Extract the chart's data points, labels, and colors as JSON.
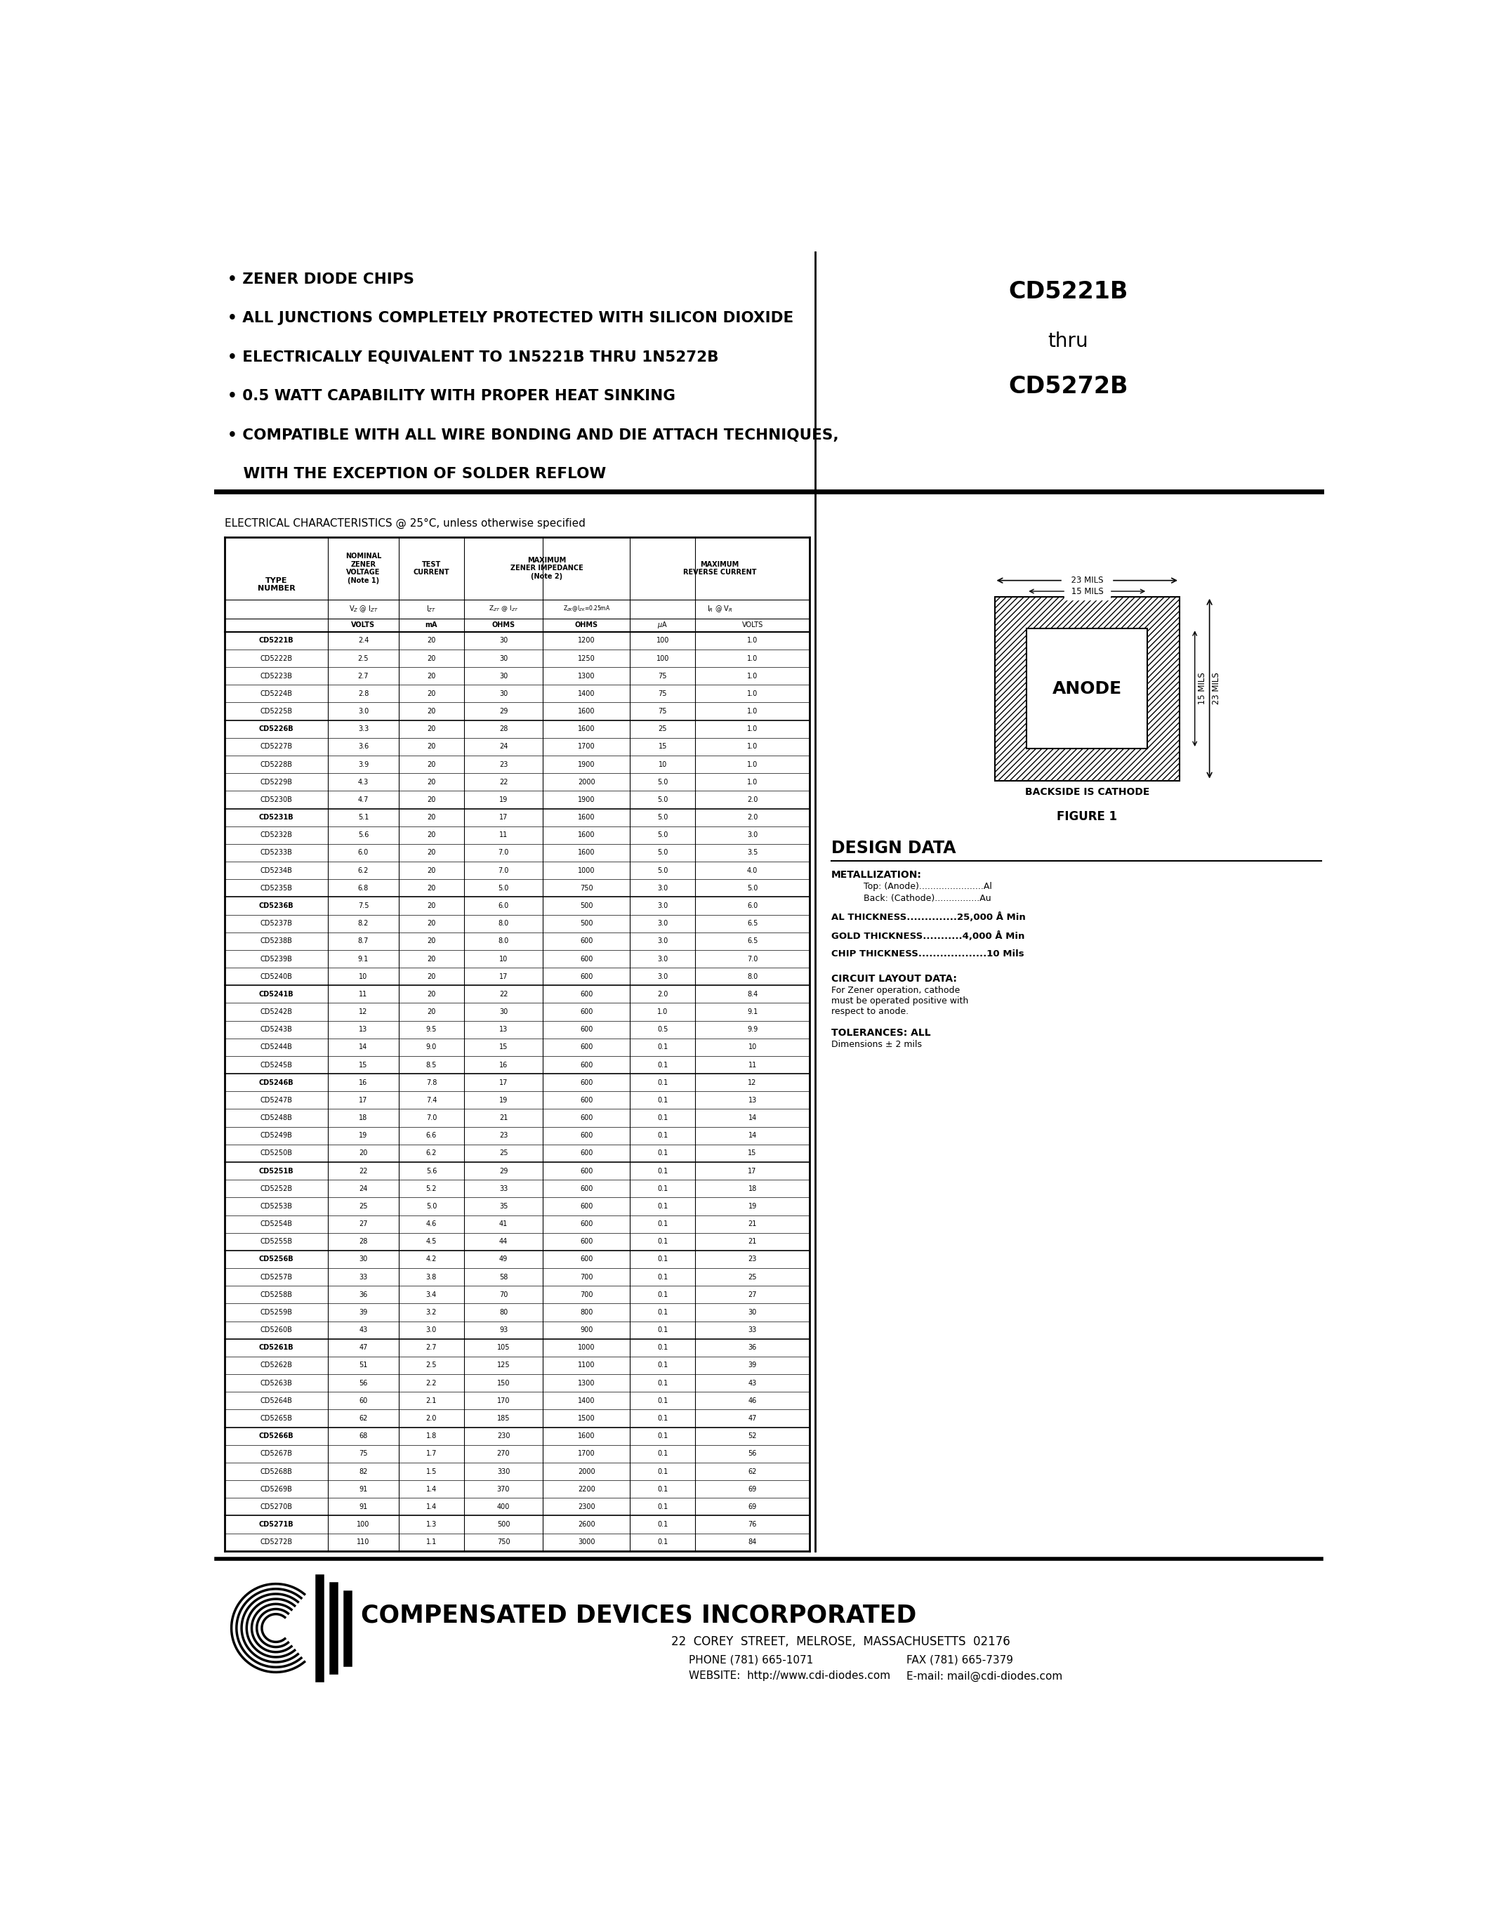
{
  "title_right_line1": "CD5221B",
  "title_right_line2": "thru",
  "title_right_line3": "CD5272B",
  "bullets": [
    "• ZENER DIODE CHIPS",
    "• ALL JUNCTIONS COMPLETELY PROTECTED WITH SILICON DIOXIDE",
    "• ELECTRICALLY EQUIVALENT TO 1N5221B THRU 1N5272B",
    "• 0.5 WATT CAPABILITY WITH PROPER HEAT SINKING",
    "• COMPATIBLE WITH ALL WIRE BONDING AND DIE ATTACH TECHNIQUES,",
    "   WITH THE EXCEPTION OF SOLDER REFLOW"
  ],
  "ec_label": "ELECTRICAL CHARACTERISTICS @ 25°C, unless otherwise specified",
  "table_data": [
    [
      "CD5221B",
      "2.4",
      "20",
      "30",
      "1200",
      "100",
      "1.0"
    ],
    [
      "CD5222B",
      "2.5",
      "20",
      "30",
      "1250",
      "100",
      "1.0"
    ],
    [
      "CD5223B",
      "2.7",
      "20",
      "30",
      "1300",
      "75",
      "1.0"
    ],
    [
      "CD5224B",
      "2.8",
      "20",
      "30",
      "1400",
      "75",
      "1.0"
    ],
    [
      "CD5225B",
      "3.0",
      "20",
      "29",
      "1600",
      "75",
      "1.0"
    ],
    [
      "CD5226B",
      "3.3",
      "20",
      "28",
      "1600",
      "25",
      "1.0"
    ],
    [
      "CD5227B",
      "3.6",
      "20",
      "24",
      "1700",
      "15",
      "1.0"
    ],
    [
      "CD5228B",
      "3.9",
      "20",
      "23",
      "1900",
      "10",
      "1.0"
    ],
    [
      "CD5229B",
      "4.3",
      "20",
      "22",
      "2000",
      "5.0",
      "1.0"
    ],
    [
      "CD5230B",
      "4.7",
      "20",
      "19",
      "1900",
      "5.0",
      "2.0"
    ],
    [
      "CD5231B",
      "5.1",
      "20",
      "17",
      "1600",
      "5.0",
      "2.0"
    ],
    [
      "CD5232B",
      "5.6",
      "20",
      "11",
      "1600",
      "5.0",
      "3.0"
    ],
    [
      "CD5233B",
      "6.0",
      "20",
      "7.0",
      "1600",
      "5.0",
      "3.5"
    ],
    [
      "CD5234B",
      "6.2",
      "20",
      "7.0",
      "1000",
      "5.0",
      "4.0"
    ],
    [
      "CD5235B",
      "6.8",
      "20",
      "5.0",
      "750",
      "3.0",
      "5.0"
    ],
    [
      "CD5236B",
      "7.5",
      "20",
      "6.0",
      "500",
      "3.0",
      "6.0"
    ],
    [
      "CD5237B",
      "8.2",
      "20",
      "8.0",
      "500",
      "3.0",
      "6.5"
    ],
    [
      "CD5238B",
      "8.7",
      "20",
      "8.0",
      "600",
      "3.0",
      "6.5"
    ],
    [
      "CD5239B",
      "9.1",
      "20",
      "10",
      "600",
      "3.0",
      "7.0"
    ],
    [
      "CD5240B",
      "10",
      "20",
      "17",
      "600",
      "3.0",
      "8.0"
    ],
    [
      "CD5241B",
      "11",
      "20",
      "22",
      "600",
      "2.0",
      "8.4"
    ],
    [
      "CD5242B",
      "12",
      "20",
      "30",
      "600",
      "1.0",
      "9.1"
    ],
    [
      "CD5243B",
      "13",
      "9.5",
      "13",
      "600",
      "0.5",
      "9.9"
    ],
    [
      "CD5244B",
      "14",
      "9.0",
      "15",
      "600",
      "0.1",
      "10"
    ],
    [
      "CD5245B",
      "15",
      "8.5",
      "16",
      "600",
      "0.1",
      "11"
    ],
    [
      "CD5246B",
      "16",
      "7.8",
      "17",
      "600",
      "0.1",
      "12"
    ],
    [
      "CD5247B",
      "17",
      "7.4",
      "19",
      "600",
      "0.1",
      "13"
    ],
    [
      "CD5248B",
      "18",
      "7.0",
      "21",
      "600",
      "0.1",
      "14"
    ],
    [
      "CD5249B",
      "19",
      "6.6",
      "23",
      "600",
      "0.1",
      "14"
    ],
    [
      "CD5250B",
      "20",
      "6.2",
      "25",
      "600",
      "0.1",
      "15"
    ],
    [
      "CD5251B",
      "22",
      "5.6",
      "29",
      "600",
      "0.1",
      "17"
    ],
    [
      "CD5252B",
      "24",
      "5.2",
      "33",
      "600",
      "0.1",
      "18"
    ],
    [
      "CD5253B",
      "25",
      "5.0",
      "35",
      "600",
      "0.1",
      "19"
    ],
    [
      "CD5254B",
      "27",
      "4.6",
      "41",
      "600",
      "0.1",
      "21"
    ],
    [
      "CD5255B",
      "28",
      "4.5",
      "44",
      "600",
      "0.1",
      "21"
    ],
    [
      "CD5256B",
      "30",
      "4.2",
      "49",
      "600",
      "0.1",
      "23"
    ],
    [
      "CD5257B",
      "33",
      "3.8",
      "58",
      "700",
      "0.1",
      "25"
    ],
    [
      "CD5258B",
      "36",
      "3.4",
      "70",
      "700",
      "0.1",
      "27"
    ],
    [
      "CD5259B",
      "39",
      "3.2",
      "80",
      "800",
      "0.1",
      "30"
    ],
    [
      "CD5260B",
      "43",
      "3.0",
      "93",
      "900",
      "0.1",
      "33"
    ],
    [
      "CD5261B",
      "47",
      "2.7",
      "105",
      "1000",
      "0.1",
      "36"
    ],
    [
      "CD5262B",
      "51",
      "2.5",
      "125",
      "1100",
      "0.1",
      "39"
    ],
    [
      "CD5263B",
      "56",
      "2.2",
      "150",
      "1300",
      "0.1",
      "43"
    ],
    [
      "CD5264B",
      "60",
      "2.1",
      "170",
      "1400",
      "0.1",
      "46"
    ],
    [
      "CD5265B",
      "62",
      "2.0",
      "185",
      "1500",
      "0.1",
      "47"
    ],
    [
      "CD5266B",
      "68",
      "1.8",
      "230",
      "1600",
      "0.1",
      "52"
    ],
    [
      "CD5267B",
      "75",
      "1.7",
      "270",
      "1700",
      "0.1",
      "56"
    ],
    [
      "CD5268B",
      "82",
      "1.5",
      "330",
      "2000",
      "0.1",
      "62"
    ],
    [
      "CD5269B",
      "91",
      "1.4",
      "370",
      "2200",
      "0.1",
      "69"
    ],
    [
      "CD5270B",
      "91",
      "1.4",
      "400",
      "2300",
      "0.1",
      "69"
    ],
    [
      "CD5271B",
      "100",
      "1.3",
      "500",
      "2600",
      "0.1",
      "76"
    ],
    [
      "CD5272B",
      "110",
      "1.1",
      "750",
      "3000",
      "0.1",
      "84"
    ]
  ],
  "right_panel": {
    "figure_title": "FIGURE 1",
    "backside_label": "BACKSIDE IS CATHODE",
    "design_data_title": "DESIGN DATA",
    "metallization_title": "METALLIZATION:",
    "metallization_top": "Top: (Anode).......................Al",
    "metallization_back": "Back: (Cathode)................Au",
    "al_thickness": "AL THICKNESS..............25,000 Å Min",
    "gold_thickness": "GOLD THICKNESS...........4,000 Å Min",
    "chip_thickness": "CHIP THICKNESS...................10 Mils",
    "circuit_layout_title": "CIRCUIT LAYOUT DATA:",
    "circuit_layout_text": "For Zener operation, cathode\nmust be operated positive with\nrespect to anode.",
    "tolerances_title": "TOLERANCES: ALL",
    "tolerances_text": "Dimensions ± 2 mils"
  },
  "footer_address": "22  COREY  STREET,  MELROSE,  MASSACHUSETTS  02176",
  "footer_phone": "PHONE (781) 665-1071",
  "footer_fax": "FAX (781) 665-7379",
  "footer_website": "WEBSITE:  http://www.cdi-diodes.com",
  "footer_email": "E-mail: mail@cdi-diodes.com"
}
